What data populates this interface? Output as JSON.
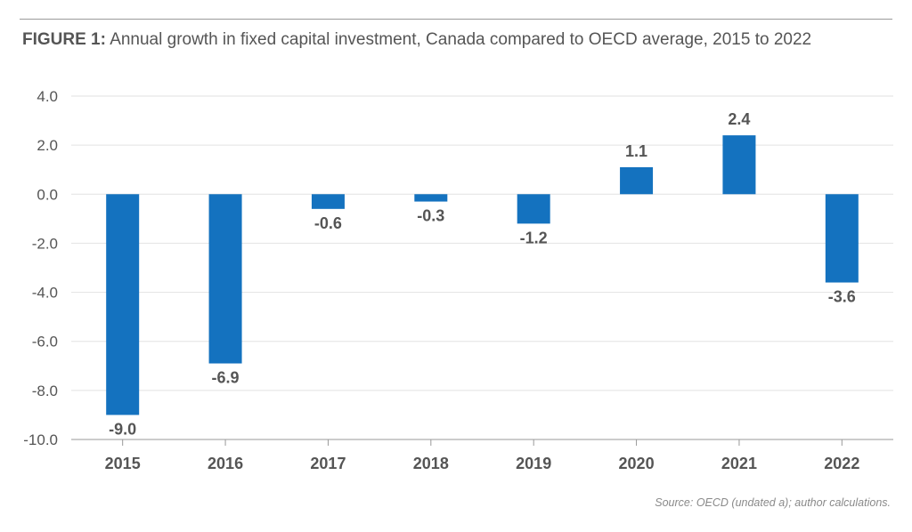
{
  "header": {
    "figure_label": "FIGURE 1:",
    "title": "Annual growth in fixed capital investment, Canada compared to OECD average, 2015 to 2022"
  },
  "footer": {
    "source": "Source: OECD (undated a); author calculations."
  },
  "colors": {
    "bar": "#1472bf",
    "label": "#555555",
    "grid": "#e2e2e2",
    "axis": "#999999"
  },
  "chart_data": {
    "type": "bar",
    "title": "Annual growth in fixed capital investment, Canada compared to OECD average, 2015 to 2022",
    "xlabel": "",
    "ylabel": "",
    "categories": [
      "2015",
      "2016",
      "2017",
      "2018",
      "2019",
      "2020",
      "2021",
      "2022"
    ],
    "values": [
      -9.0,
      -6.9,
      -0.6,
      -0.3,
      -1.2,
      1.1,
      2.4,
      -3.6
    ],
    "data_labels": [
      "-9.0",
      "-6.9",
      "-0.6",
      "-0.3",
      "-1.2",
      "1.1",
      "2.4",
      "-3.6"
    ],
    "ylim": [
      -10,
      4
    ],
    "yticks": [
      "4.0",
      "2.0",
      "0.0",
      "-2.0",
      "-4.0",
      "-6.0",
      "-8.0",
      "-10.0"
    ],
    "ytick_values": [
      4,
      2,
      0,
      -2,
      -4,
      -6,
      -8,
      -10
    ],
    "grid": true,
    "legend": "none"
  }
}
